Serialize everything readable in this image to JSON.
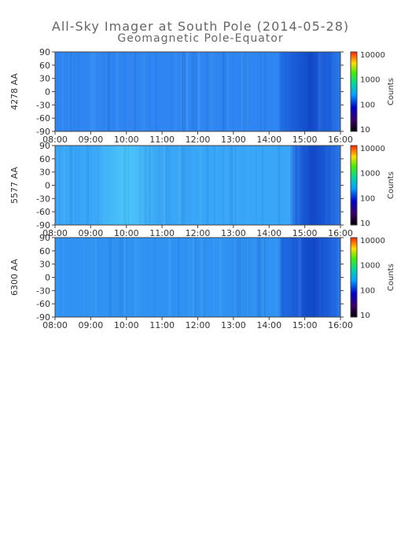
{
  "chart_data": {
    "type": "heatmap",
    "title": "All-Sky Imager at South Pole (2014-05-28)",
    "subtitle": "Geomagnetic Pole-Equator",
    "x_tick_labels": [
      "08:00",
      "09:00",
      "10:00",
      "11:00",
      "12:00",
      "13:00",
      "14:00",
      "15:00",
      "16:00"
    ],
    "y_tick_labels": [
      "90",
      "60",
      "30",
      "0",
      "-30",
      "-60",
      "-90"
    ],
    "y_ticks": [
      90,
      60,
      30,
      0,
      -30,
      -60,
      -90
    ],
    "x_range": [
      "08:00",
      "16:00"
    ],
    "y_range": [
      -90,
      90
    ],
    "colorbar": {
      "label": "Counts",
      "scale": "log",
      "range": [
        10,
        10000
      ],
      "tick_labels": [
        "10000",
        "1000",
        "100",
        "10"
      ],
      "tick_values": [
        10000,
        1000,
        100,
        10
      ]
    },
    "panels": [
      {
        "ylabel": "4278 AA",
        "base_color": "#2f86f2",
        "dark_region_start": "14:20",
        "dark_core": "15:10",
        "bright_band": "none"
      },
      {
        "ylabel": "5577 AA",
        "base_color": "#3aa6f7",
        "dark_region_start": "14:40",
        "dark_core": "15:15",
        "bright_band": "10:00"
      },
      {
        "ylabel": "6300 AA",
        "base_color": "#3093f3",
        "dark_region_start": "14:20",
        "dark_core": "15:15",
        "bright_band": "none"
      }
    ]
  }
}
